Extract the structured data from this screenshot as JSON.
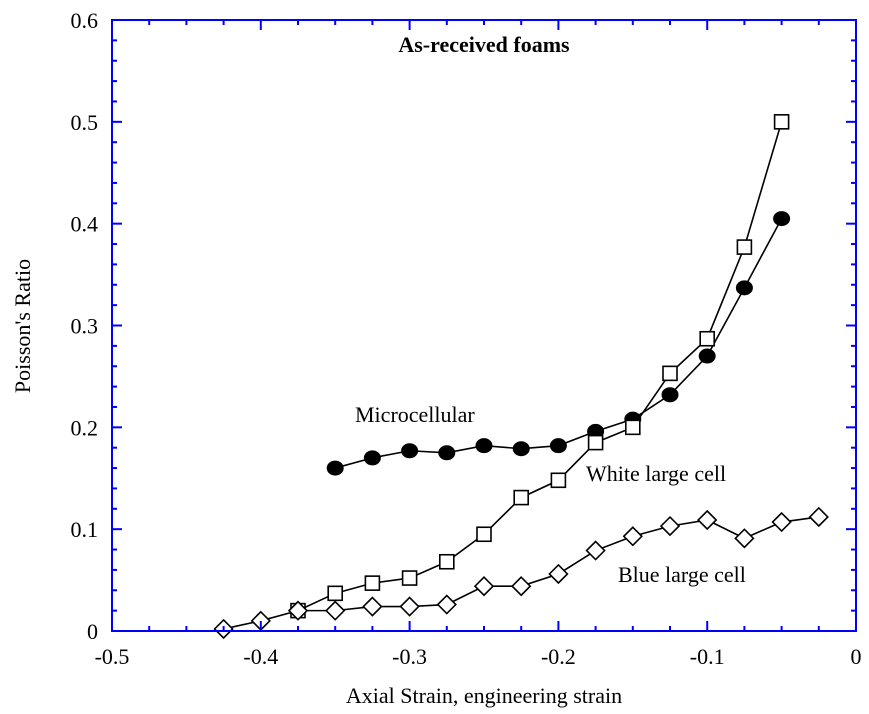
{
  "chart_data": {
    "type": "line",
    "title": "As-received foams",
    "xlabel": "Axial Strain, engineering strain",
    "ylabel": "Poisson's Ratio",
    "xlim": [
      -0.5,
      0
    ],
    "ylim": [
      0,
      0.6
    ],
    "xticks": [
      -0.5,
      -0.4,
      -0.3,
      -0.2,
      -0.1,
      0
    ],
    "xtick_labels": [
      "-0.5",
      "-0.4",
      "-0.3",
      "-0.2",
      "-0.1",
      "0"
    ],
    "yticks": [
      0,
      0.1,
      0.2,
      0.3,
      0.4,
      0.5,
      0.6
    ],
    "ytick_labels": [
      "0",
      "0.1",
      "0.2",
      "0.3",
      "0.4",
      "0.5",
      "0.6"
    ],
    "grid": false,
    "legend": "none (series labeled inline)",
    "series": [
      {
        "name": "Microcellular",
        "marker": "filled-circle",
        "color": "#000000",
        "x": [
          -0.35,
          -0.325,
          -0.3,
          -0.275,
          -0.25,
          -0.225,
          -0.2,
          -0.175,
          -0.15,
          -0.125,
          -0.1,
          -0.075,
          -0.05
        ],
        "y": [
          0.16,
          0.17,
          0.177,
          0.175,
          0.182,
          0.179,
          0.182,
          0.196,
          0.208,
          0.232,
          0.27,
          0.337,
          0.405
        ]
      },
      {
        "name": "White large cell",
        "marker": "open-square",
        "color": "#000000",
        "x": [
          -0.375,
          -0.35,
          -0.325,
          -0.3,
          -0.275,
          -0.25,
          -0.225,
          -0.2,
          -0.175,
          -0.15,
          -0.125,
          -0.1,
          -0.075,
          -0.05
        ],
        "y": [
          0.02,
          0.037,
          0.047,
          0.052,
          0.068,
          0.095,
          0.131,
          0.148,
          0.185,
          0.2,
          0.253,
          0.287,
          0.377,
          0.5
        ]
      },
      {
        "name": "Blue large cell",
        "marker": "open-diamond",
        "color": "#000000",
        "x": [
          -0.425,
          -0.4,
          -0.375,
          -0.35,
          -0.325,
          -0.3,
          -0.275,
          -0.25,
          -0.225,
          -0.2,
          -0.175,
          -0.15,
          -0.125,
          -0.1,
          -0.075,
          -0.05,
          -0.025
        ],
        "y": [
          0.002,
          0.01,
          0.02,
          0.02,
          0.024,
          0.024,
          0.026,
          0.044,
          0.044,
          0.056,
          0.079,
          0.093,
          0.103,
          0.109,
          0.091,
          0.107,
          0.112
        ]
      }
    ],
    "annotations": [
      {
        "text": "Microcellular",
        "series": "Microcellular"
      },
      {
        "text": "White large cell",
        "series": "White large cell"
      },
      {
        "text": "Blue large cell",
        "series": "Blue large cell"
      }
    ],
    "colors": {
      "axis": "#0000ff",
      "data": "#000000"
    }
  }
}
